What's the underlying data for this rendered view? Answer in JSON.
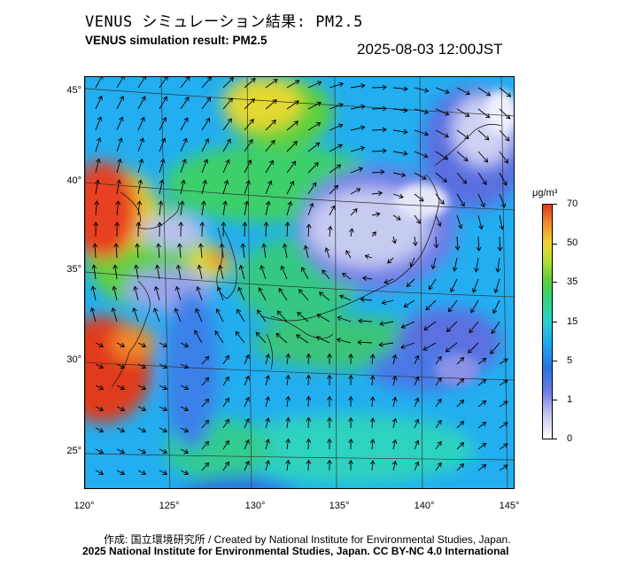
{
  "header": {
    "title_jp": "VENUS シミュレーション結果: PM2.5",
    "title_en": "VENUS simulation result: PM2.5",
    "timestamp": "2025-08-03 12:00JST"
  },
  "map": {
    "region": "East Asia / Japan",
    "projection": "conic",
    "latitude_labels": [
      "45°",
      "40°",
      "35°",
      "30°",
      "25°"
    ],
    "longitude_labels": [
      "120°",
      "125°",
      "130°",
      "135°",
      "140°",
      "145°"
    ],
    "overlay": "wind vectors (arrows)",
    "colors": {
      "very_low": "#d8d8f4",
      "low_blue": "#2a72e0",
      "cyan": "#1ea6f0",
      "green": "#34d07a",
      "yellow": "#f0d030",
      "orange": "#f08a2a",
      "red": "#e23a1e"
    }
  },
  "colorbar": {
    "unit": "μg/m³",
    "labels": [
      "70",
      "50",
      "35",
      "15",
      "5",
      "1",
      "0"
    ]
  },
  "footer": {
    "credit_line_1": "作成: 国立環境研究所 / Created by National Institute for Environmental Studies, Japan.",
    "credit_line_2": "2025 National Institute for Environmental Studies, Japan. CC BY-NC 4.0 International"
  }
}
